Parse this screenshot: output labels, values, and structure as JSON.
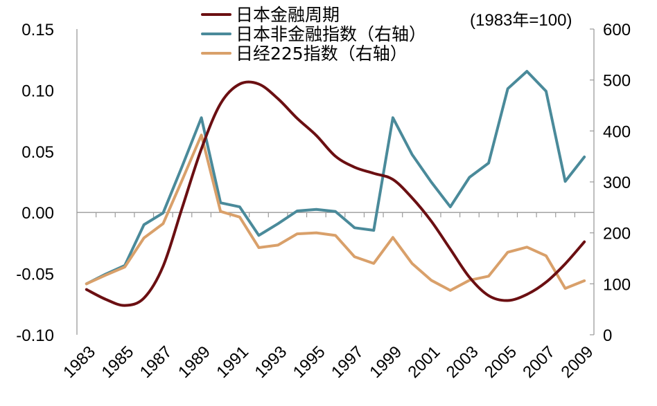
{
  "chart_data": {
    "type": "line",
    "title": "",
    "unit_note": "(1983年=100)",
    "x": [
      "1983",
      "1984",
      "1985",
      "1986",
      "1987",
      "1988",
      "1989",
      "1990",
      "1991",
      "1992",
      "1993",
      "1994",
      "1995",
      "1996",
      "1997",
      "1998",
      "1999",
      "2000",
      "2001",
      "2002",
      "2003",
      "2004",
      "2005",
      "2006",
      "2007",
      "2008",
      "2009"
    ],
    "x_tick_labels": [
      "1983",
      "1985",
      "1987",
      "1989",
      "1991",
      "1993",
      "1995",
      "1997",
      "1999",
      "2001",
      "2003",
      "2005",
      "2007",
      "2009"
    ],
    "left_axis": {
      "ylim": [
        -0.1,
        0.15
      ],
      "ticks": [
        "-0.10",
        "-0.05",
        "0.00",
        "0.05",
        "0.10",
        "0.15"
      ]
    },
    "right_axis": {
      "ylim": [
        0,
        600
      ],
      "ticks": [
        "0",
        "100",
        "200",
        "300",
        "400",
        "500",
        "600"
      ]
    },
    "grid": false,
    "legend_position": "top-center",
    "series": [
      {
        "name": "日本金融周期",
        "axis": "left",
        "color": "#6b0f12",
        "smooth": true,
        "values": [
          -0.063,
          -0.071,
          -0.076,
          -0.07,
          -0.044,
          0.004,
          0.052,
          0.089,
          0.105,
          0.105,
          0.093,
          0.077,
          0.063,
          0.046,
          0.037,
          0.032,
          0.027,
          0.012,
          -0.007,
          -0.03,
          -0.053,
          -0.068,
          -0.072,
          -0.067,
          -0.057,
          -0.042,
          -0.024
        ]
      },
      {
        "name": "日本非金融指数（右轴）",
        "axis": "right",
        "color": "#4a8a9a",
        "smooth": false,
        "values": [
          100,
          119,
          136,
          216,
          239,
          331,
          426,
          259,
          251,
          195,
          218,
          243,
          246,
          242,
          210,
          205,
          426,
          354,
          300,
          251,
          309,
          337,
          483,
          517,
          478,
          301,
          349
        ]
      },
      {
        "name": "日经225指数（右轴）",
        "axis": "right",
        "color": "#d9a06a",
        "smooth": false,
        "values": [
          100,
          117,
          133,
          190,
          218,
          304,
          392,
          242,
          231,
          171,
          176,
          198,
          200,
          195,
          153,
          140,
          191,
          140,
          107,
          87,
          107,
          115,
          162,
          172,
          155,
          91,
          106
        ]
      }
    ]
  },
  "legend": {
    "items": [
      {
        "label": "日本金融周期",
        "color": "#6b0f12"
      },
      {
        "label": "日本非金融指数（右轴）",
        "color": "#4a8a9a"
      },
      {
        "label": "日经225指数（右轴）",
        "color": "#d9a06a"
      }
    ]
  }
}
